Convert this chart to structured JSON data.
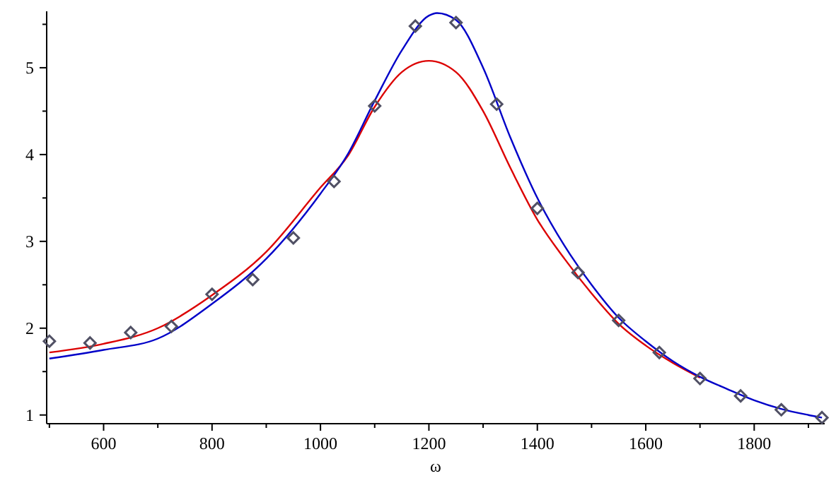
{
  "chart_data": {
    "type": "line",
    "xlabel": "ω",
    "xlim": [
      495,
      1930
    ],
    "ylim": [
      0.9,
      5.65
    ],
    "xticks": [
      {
        "value": 500,
        "label": null
      },
      600,
      {
        "value": 700,
        "label": null
      },
      800,
      {
        "value": 900,
        "label": null
      },
      1000,
      {
        "value": 1100,
        "label": null
      },
      1200,
      {
        "value": 1300,
        "label": null
      },
      1400,
      {
        "value": 1500,
        "label": null
      },
      1600,
      {
        "value": 1700,
        "label": null
      },
      1800,
      {
        "value": 1900,
        "label": null
      }
    ],
    "yticks": [
      1,
      {
        "value": 1.5,
        "label": null
      },
      2,
      {
        "value": 2.5,
        "label": null
      },
      3,
      {
        "value": 3.5,
        "label": null
      },
      4,
      {
        "value": 4.5,
        "label": null
      },
      5,
      {
        "value": 5.5,
        "label": null
      }
    ],
    "grid": false,
    "series": [
      {
        "color": "#dc0000",
        "x": [
          500,
          600,
          700,
          800,
          900,
          1000,
          1050,
          1100,
          1150,
          1200,
          1250,
          1300,
          1350,
          1400,
          1450,
          1500,
          1550,
          1600,
          1650,
          1700
        ],
        "values": [
          1.72,
          1.82,
          2.0,
          2.38,
          2.88,
          3.62,
          3.98,
          4.55,
          4.95,
          5.08,
          4.95,
          4.5,
          3.85,
          3.25,
          2.8,
          2.4,
          2.05,
          1.8,
          1.6,
          1.43
        ]
      },
      {
        "color": "#0000c8",
        "x": [
          500,
          600,
          700,
          800,
          900,
          1000,
          1050,
          1100,
          1150,
          1200,
          1215,
          1250,
          1300,
          1350,
          1400,
          1450,
          1500,
          1550,
          1600,
          1650,
          1700,
          1750,
          1800,
          1850,
          1900,
          1925
        ],
        "values": [
          1.65,
          1.75,
          1.88,
          2.28,
          2.8,
          3.55,
          4.0,
          4.62,
          5.2,
          5.6,
          5.63,
          5.55,
          5.0,
          4.2,
          3.5,
          2.95,
          2.5,
          2.12,
          1.85,
          1.62,
          1.44,
          1.3,
          1.17,
          1.07,
          1.0,
          0.97
        ]
      },
      {
        "type": "scatter",
        "color": "#505064",
        "marker": "diamond",
        "x": [
          500,
          575,
          650,
          725,
          800,
          875,
          950,
          1025,
          1100,
          1175,
          1250,
          1325,
          1400,
          1475,
          1550,
          1625,
          1700,
          1775,
          1850,
          1925
        ],
        "values": [
          1.85,
          1.83,
          1.95,
          2.02,
          2.39,
          2.56,
          3.04,
          3.69,
          4.56,
          5.48,
          5.52,
          4.58,
          3.38,
          2.64,
          2.09,
          1.72,
          1.42,
          1.22,
          1.06,
          0.97
        ]
      }
    ]
  }
}
